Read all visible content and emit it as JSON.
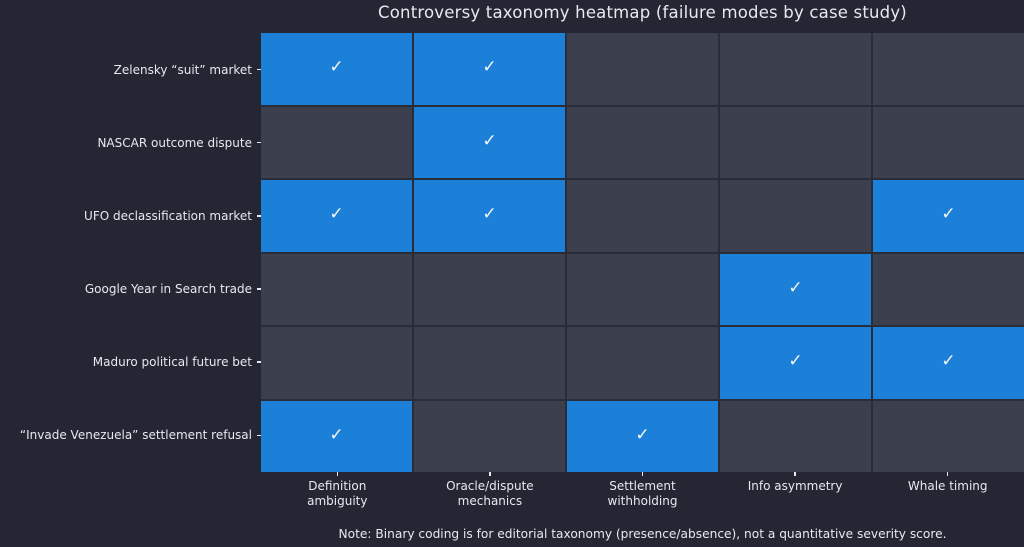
{
  "chart_data": {
    "type": "heatmap",
    "title": "Controversy taxonomy heatmap (failure modes by case study)",
    "note": "Note: Binary coding is for editorial taxonomy (presence/absence), not a quantitative severity score.",
    "rows": [
      "Zelensky “suit” market",
      "NASCAR outcome dispute",
      "UFO declassification market",
      "Google Year in Search trade",
      "Maduro political future bet",
      "“Invade Venezuela” settlement refusal"
    ],
    "columns": [
      "Definition\nambiguity",
      "Oracle/dispute\nmechanics",
      "Settlement\nwithholding",
      "Info asymmetry",
      "Whale timing"
    ],
    "matrix": [
      [
        1,
        1,
        0,
        0,
        0
      ],
      [
        0,
        1,
        0,
        0,
        0
      ],
      [
        1,
        1,
        0,
        0,
        1
      ],
      [
        0,
        0,
        0,
        1,
        0
      ],
      [
        0,
        0,
        0,
        1,
        1
      ],
      [
        1,
        0,
        1,
        0,
        0
      ]
    ],
    "cell_glyph_present": "✓",
    "value_encoding": "binary presence/absence",
    "colors": {
      "background": "#242634",
      "present": "#1c80d8",
      "absent": "#3c3f4d",
      "gridline": "#2a2c38",
      "text": "#e8e9ed",
      "check": "#f7f8f4"
    }
  }
}
